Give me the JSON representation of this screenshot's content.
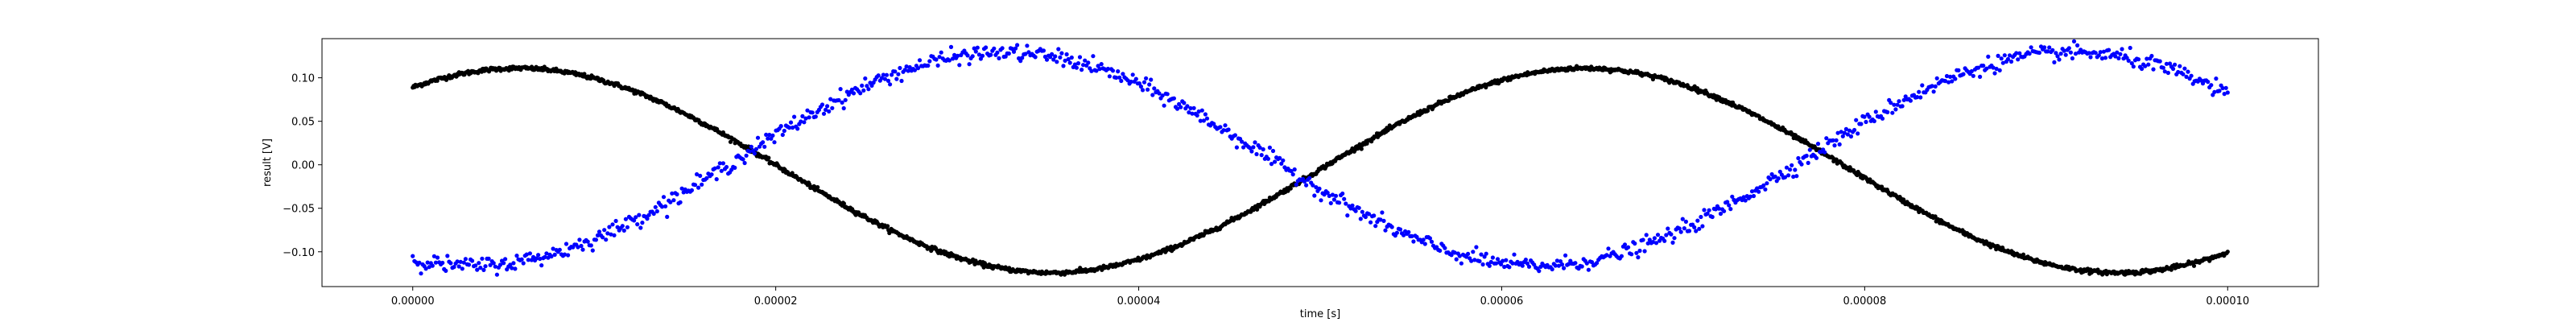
{
  "chart_data": {
    "type": "scatter",
    "xlabel": "time [s]",
    "ylabel": "result [V]",
    "xlim": [
      -5e-06,
      0.000105
    ],
    "ylim": [
      -0.14,
      0.145
    ],
    "grid": false,
    "x_ticks": [
      0.0,
      2e-05,
      4e-05,
      6e-05,
      8e-05,
      0.0001
    ],
    "x_tick_labels": [
      "0.00000",
      "0.00002",
      "0.00004",
      "0.00006",
      "0.00008",
      "0.00010"
    ],
    "y_ticks": [
      -0.1,
      -0.05,
      0.0,
      0.05,
      0.1
    ],
    "y_tick_labels": [
      "−0.10",
      "−0.05",
      "0.00",
      "0.05",
      "0.10"
    ],
    "series": [
      {
        "color": "#000000",
        "model": "sine",
        "x_range": [
          0.0,
          0.0001
        ],
        "n_points": 2000,
        "offset": -0.0065,
        "amplitude": 0.1175,
        "period": 5.88e-05,
        "peak_time": 5.8e-06,
        "noise": 0.0012
      },
      {
        "color": "#0000ff",
        "model": "sine",
        "x_range": [
          0.0,
          0.0001
        ],
        "n_points": 1100,
        "offset": 0.0065,
        "amplitude": 0.1225,
        "period": 5.88e-05,
        "peak_time": 3.26e-05,
        "noise": 0.0045
      }
    ]
  }
}
